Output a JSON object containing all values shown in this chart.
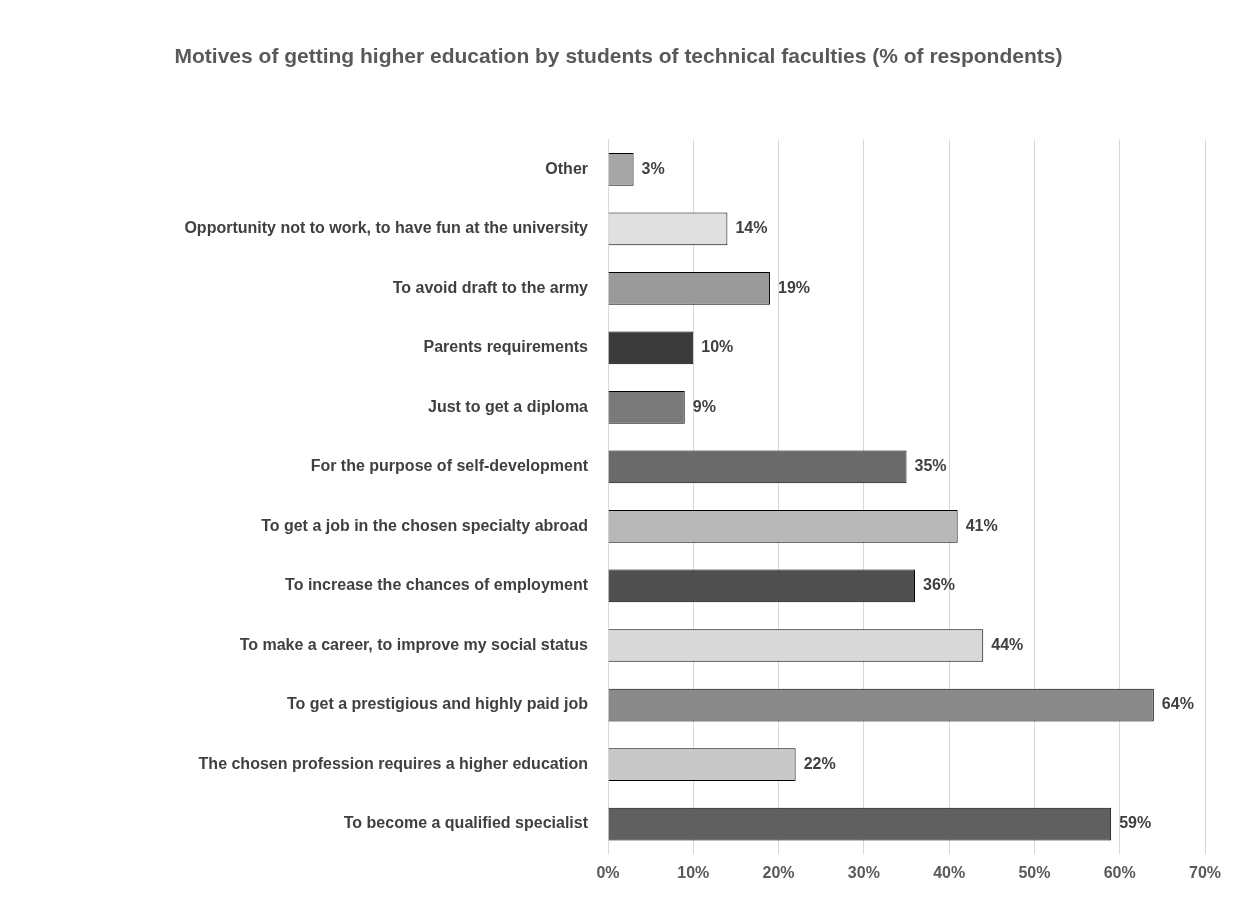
{
  "chart_data": {
    "type": "bar",
    "orientation": "horizontal",
    "title": "Motives of getting higher education by students of technical faculties (% of respondents)",
    "categories": [
      "Other",
      "Opportunity not to work, to have fun at the university",
      "To avoid draft to the army",
      "Parents requirements",
      "Just to get a diploma",
      "For the purpose of self-development",
      "To get a job in the chosen specialty abroad",
      "To increase the chances of employment",
      "To make a career, to improve my social status",
      "To get a prestigious and highly paid job",
      "The chosen profession requires a higher education",
      "To become a qualified specialist"
    ],
    "values": [
      3,
      14,
      19,
      10,
      9,
      35,
      41,
      36,
      44,
      64,
      22,
      59
    ],
    "value_labels": [
      "3%",
      "14%",
      "19%",
      "10%",
      "9%",
      "35%",
      "41%",
      "36%",
      "44%",
      "64%",
      "22%",
      "59%"
    ],
    "colors": [
      "#a6a6a6",
      "#e0e0e0",
      "#9a9a9a",
      "#3a3a3a",
      "#7a7a7a",
      "#6a6a6a",
      "#b8b8b8",
      "#505050",
      "#d8d8d8",
      "#8a8a8a",
      "#c8c8c8",
      "#606060"
    ],
    "xlim": [
      0,
      70
    ],
    "xticks": [
      {
        "value": 0,
        "label": "0%"
      },
      {
        "value": 10,
        "label": "10%"
      },
      {
        "value": 20,
        "label": "20%"
      },
      {
        "value": 30,
        "label": "30%"
      },
      {
        "value": 40,
        "label": "40%"
      },
      {
        "value": 50,
        "label": "50%"
      },
      {
        "value": 60,
        "label": "60%"
      },
      {
        "value": 70,
        "label": "70%"
      }
    ],
    "grid": "x",
    "legend": false
  }
}
